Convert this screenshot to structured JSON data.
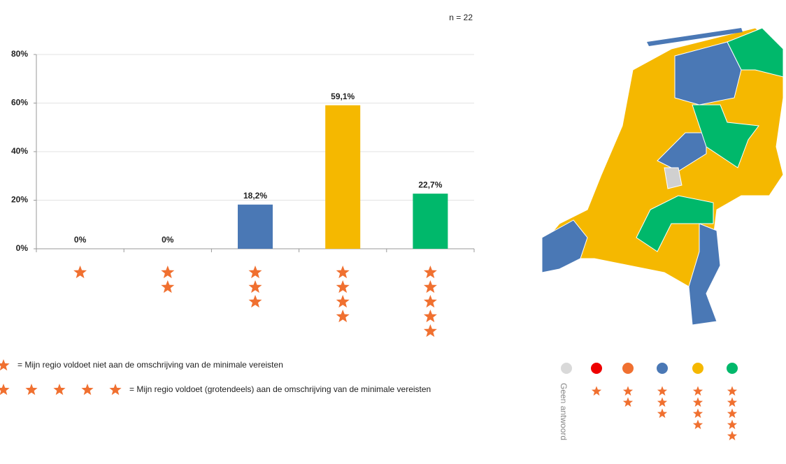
{
  "chart_data": {
    "type": "bar",
    "annotation": "n = 22",
    "categories": [
      null,
      null,
      null,
      null,
      null
    ],
    "stars": [
      1,
      2,
      3,
      4,
      5
    ],
    "values": [
      0,
      0,
      18.2,
      59.1,
      22.7
    ],
    "value_labels": [
      "0%",
      "0%",
      "18,2%",
      "59,1%",
      "22,7%"
    ],
    "colors": [
      "#ee0000",
      "#f07030",
      "#4a78b5",
      "#f5b800",
      "#00b86b"
    ],
    "star_color": "#f07030",
    "ylim": [
      0,
      80
    ],
    "yticks": [
      {
        "value": 0,
        "label": "0%"
      },
      {
        "value": 20,
        "label": "20%"
      },
      {
        "value": 40,
        "label": "40%"
      },
      {
        "value": 60,
        "label": "60%"
      },
      {
        "value": 80,
        "label": "80%"
      }
    ],
    "grid": true,
    "legend": [
      {
        "stars": 1,
        "label": "= Mijn  regio voldoet niet aan de omschrijving van de minimale  vereisten"
      },
      {
        "stars": 5,
        "label": "= Mijn  regio voldoet (grotendeels) aan de omschrijving van de minimale  vereisten"
      }
    ],
    "map_legend": [
      {
        "color": "#d9d9d9",
        "label": "Geen antwoord"
      },
      {
        "color": "#ee0000",
        "stars": 1
      },
      {
        "color": "#f07030",
        "stars": 2
      },
      {
        "color": "#4a78b5",
        "stars": 3
      },
      {
        "color": "#f5b800",
        "stars": 4
      },
      {
        "color": "#00b86b",
        "stars": 5
      }
    ]
  }
}
